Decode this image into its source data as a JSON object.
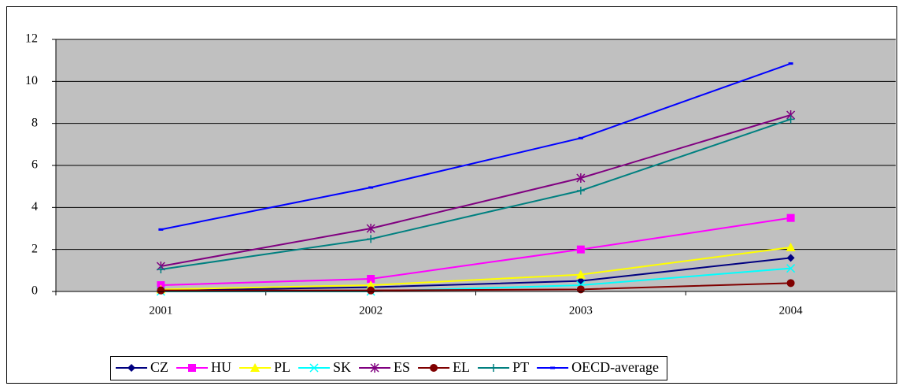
{
  "chart_data": {
    "type": "line",
    "categories": [
      "2001",
      "2002",
      "2003",
      "2004"
    ],
    "series": [
      {
        "name": "CZ",
        "color": "#000080",
        "marker": "diamond",
        "values": [
          0.05,
          0.2,
          0.5,
          1.6
        ]
      },
      {
        "name": "HU",
        "color": "#ff00ff",
        "marker": "square",
        "values": [
          0.3,
          0.6,
          2.0,
          3.5
        ]
      },
      {
        "name": "PL",
        "color": "#ffff00",
        "marker": "triangle",
        "values": [
          0.1,
          0.3,
          0.8,
          2.1
        ]
      },
      {
        "name": "SK",
        "color": "#00ffff",
        "marker": "x",
        "values": [
          0.0,
          0.0,
          0.3,
          1.1
        ]
      },
      {
        "name": "ES",
        "color": "#800080",
        "marker": "star",
        "values": [
          1.2,
          3.0,
          5.4,
          8.4
        ]
      },
      {
        "name": "EL",
        "color": "#800000",
        "marker": "circle",
        "values": [
          0.05,
          0.05,
          0.1,
          0.4
        ]
      },
      {
        "name": "PT",
        "color": "#008080",
        "marker": "plus",
        "values": [
          1.05,
          2.5,
          4.8,
          8.2
        ]
      },
      {
        "name": "OECD-average",
        "color": "#0000ff",
        "marker": "dash",
        "values": [
          2.95,
          4.95,
          7.3,
          10.85
        ]
      }
    ],
    "ylim": [
      0,
      12
    ],
    "yticks": [
      0,
      2,
      4,
      6,
      8,
      10,
      12
    ],
    "grid": true,
    "legend": "bottom"
  }
}
